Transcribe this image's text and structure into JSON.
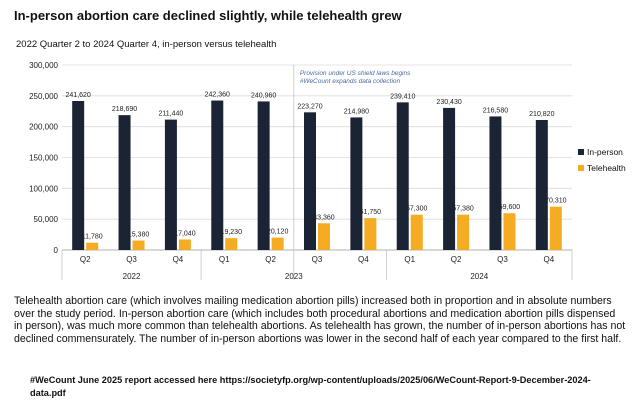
{
  "title": "In-person abortion care declined slightly, while telehealth grew",
  "subtitle": "2022 Quarter 2 to 2024 Quarter 4, in-person versus telehealth",
  "colors": {
    "inperson": "#1b2435",
    "telehealth": "#f5ac22",
    "grid": "#dcdcdc",
    "annotation": "#4a6aa0"
  },
  "chart_data": {
    "type": "bar",
    "categories": [
      "Q2",
      "Q3",
      "Q4",
      "Q1",
      "Q2",
      "Q3",
      "Q4",
      "Q1",
      "Q2",
      "Q3",
      "Q4"
    ],
    "groups": [
      {
        "label": "2022",
        "count": 3
      },
      {
        "label": "2023",
        "count": 4
      },
      {
        "label": "2024",
        "count": 4
      }
    ],
    "series": [
      {
        "name": "In-person",
        "values": [
          241620,
          218690,
          211440,
          242360,
          240960,
          223270,
          214980,
          239410,
          230430,
          216580,
          210820
        ],
        "labels": [
          "241,620",
          "218,690",
          "211,440",
          "242,360",
          "240,960",
          "223,270",
          "214,980",
          "239,410",
          "230,430",
          "216,580",
          "210,820"
        ]
      },
      {
        "name": "Telehealth",
        "values": [
          11780,
          15380,
          17040,
          19230,
          20120,
          43360,
          51750,
          57300,
          57380,
          59600,
          70310
        ],
        "labels": [
          "11,780",
          "15,380",
          "17,040",
          "19,230",
          "20,120",
          "43,360",
          "51,750",
          "57,300",
          "57,380",
          "59,600",
          "70,310"
        ]
      }
    ],
    "yticks": [
      "0",
      "50,000",
      "100,000",
      "150,000",
      "200,000",
      "250,000",
      "300,000"
    ],
    "ylim": [
      0,
      300000
    ],
    "ytick_step": 50000,
    "annotation": {
      "lines": [
        "Provision under US shield laws begins",
        "#WeCount expands data collection"
      ],
      "at_category_index": 5
    },
    "legend_position": "right"
  },
  "description": "Telehealth abortion care (which involves mailing medication abortion pills) increased both in proportion and in absolute numbers over the study period. In-person abortion care (which includes both procedural abortions and medication abortion pills dispensed in person), was much more common than telehealth abortions. As telehealth has grown, the number of in-person abortions has not declined commensurately. The number of in-person abortions was lower in the second half of each year compared to the first half.",
  "source": "#WeCount June 2025 report accessed here https://societyfp.org/wp-content/uploads/2025/06/WeCount-Report-9-December-2024-data.pdf"
}
